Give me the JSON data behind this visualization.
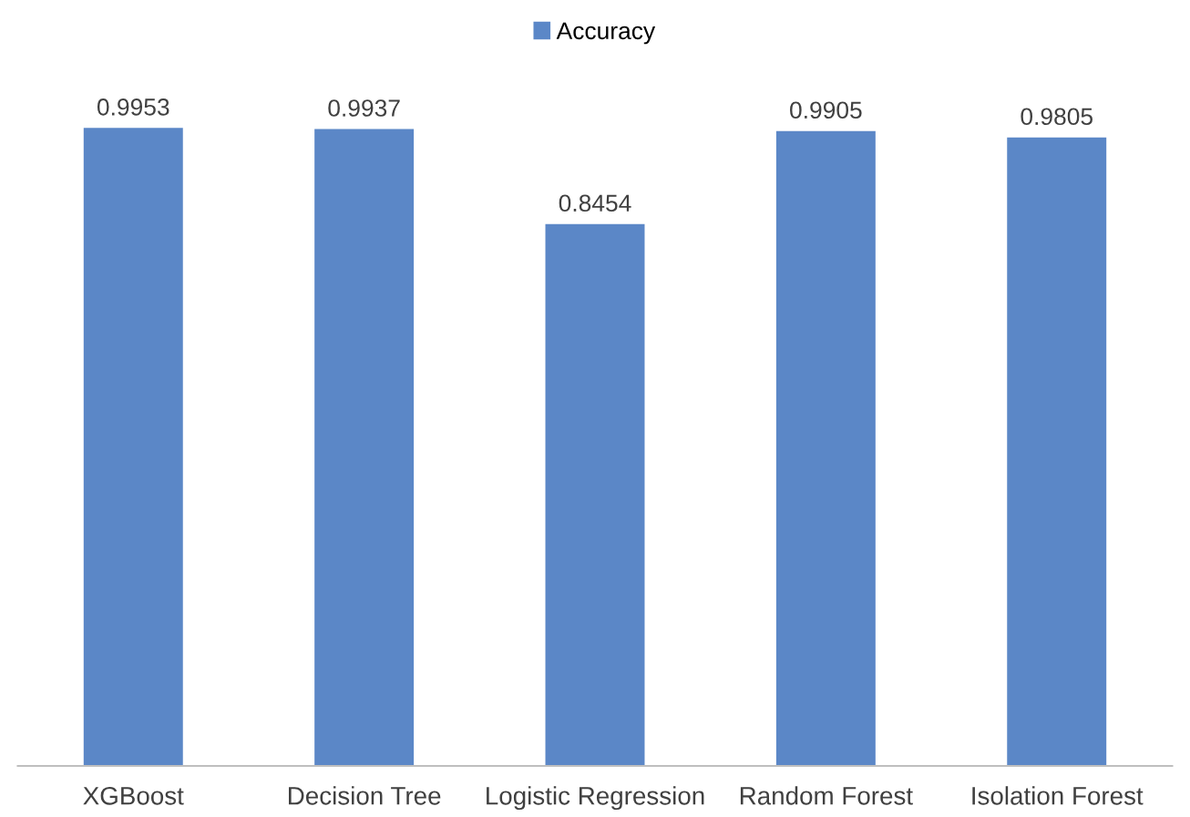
{
  "chart_data": {
    "type": "bar",
    "categories": [
      "XGBoost",
      "Decision Tree",
      "Logistic Regression",
      "Random Forest",
      "Isolation Forest"
    ],
    "series": [
      {
        "name": "Accuracy",
        "color": "#5b87c7",
        "values": [
          0.9953,
          0.9937,
          0.8454,
          0.9905,
          0.9805
        ]
      }
    ],
    "tick_labels": "x",
    "data_labels": true,
    "legend": "top",
    "grid": false
  }
}
